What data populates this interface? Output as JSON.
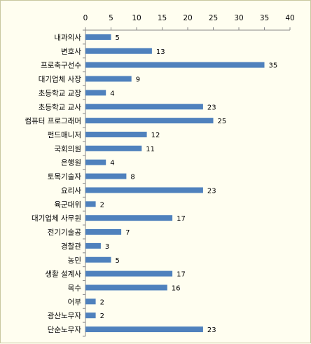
{
  "chart_data": {
    "type": "bar",
    "orientation": "horizontal",
    "categories": [
      "내과의사",
      "변호사",
      "프로축구선수",
      "대기업체 사장",
      "초등학교 교장",
      "초등학교 교사",
      "컴퓨터 프로그래머",
      "펀드매니저",
      "국회의원",
      "은행원",
      "토목기술자",
      "요리사",
      "육군대위",
      "대기업체 사무원",
      "전기기술공",
      "경찰관",
      "농민",
      "생활 설계사",
      "목수",
      "어부",
      "광산노무자",
      "단순노무자"
    ],
    "values": [
      5,
      13,
      35,
      9,
      4,
      23,
      25,
      12,
      11,
      4,
      8,
      23,
      2,
      17,
      7,
      3,
      5,
      17,
      16,
      2,
      2,
      23
    ],
    "xlim": [
      0,
      40
    ],
    "xticks": [
      0,
      5,
      10,
      15,
      20,
      25,
      30,
      35,
      40
    ],
    "xaxis_position": "top",
    "bar_color": "#4f81bd",
    "grid": false,
    "data_labels": true
  }
}
